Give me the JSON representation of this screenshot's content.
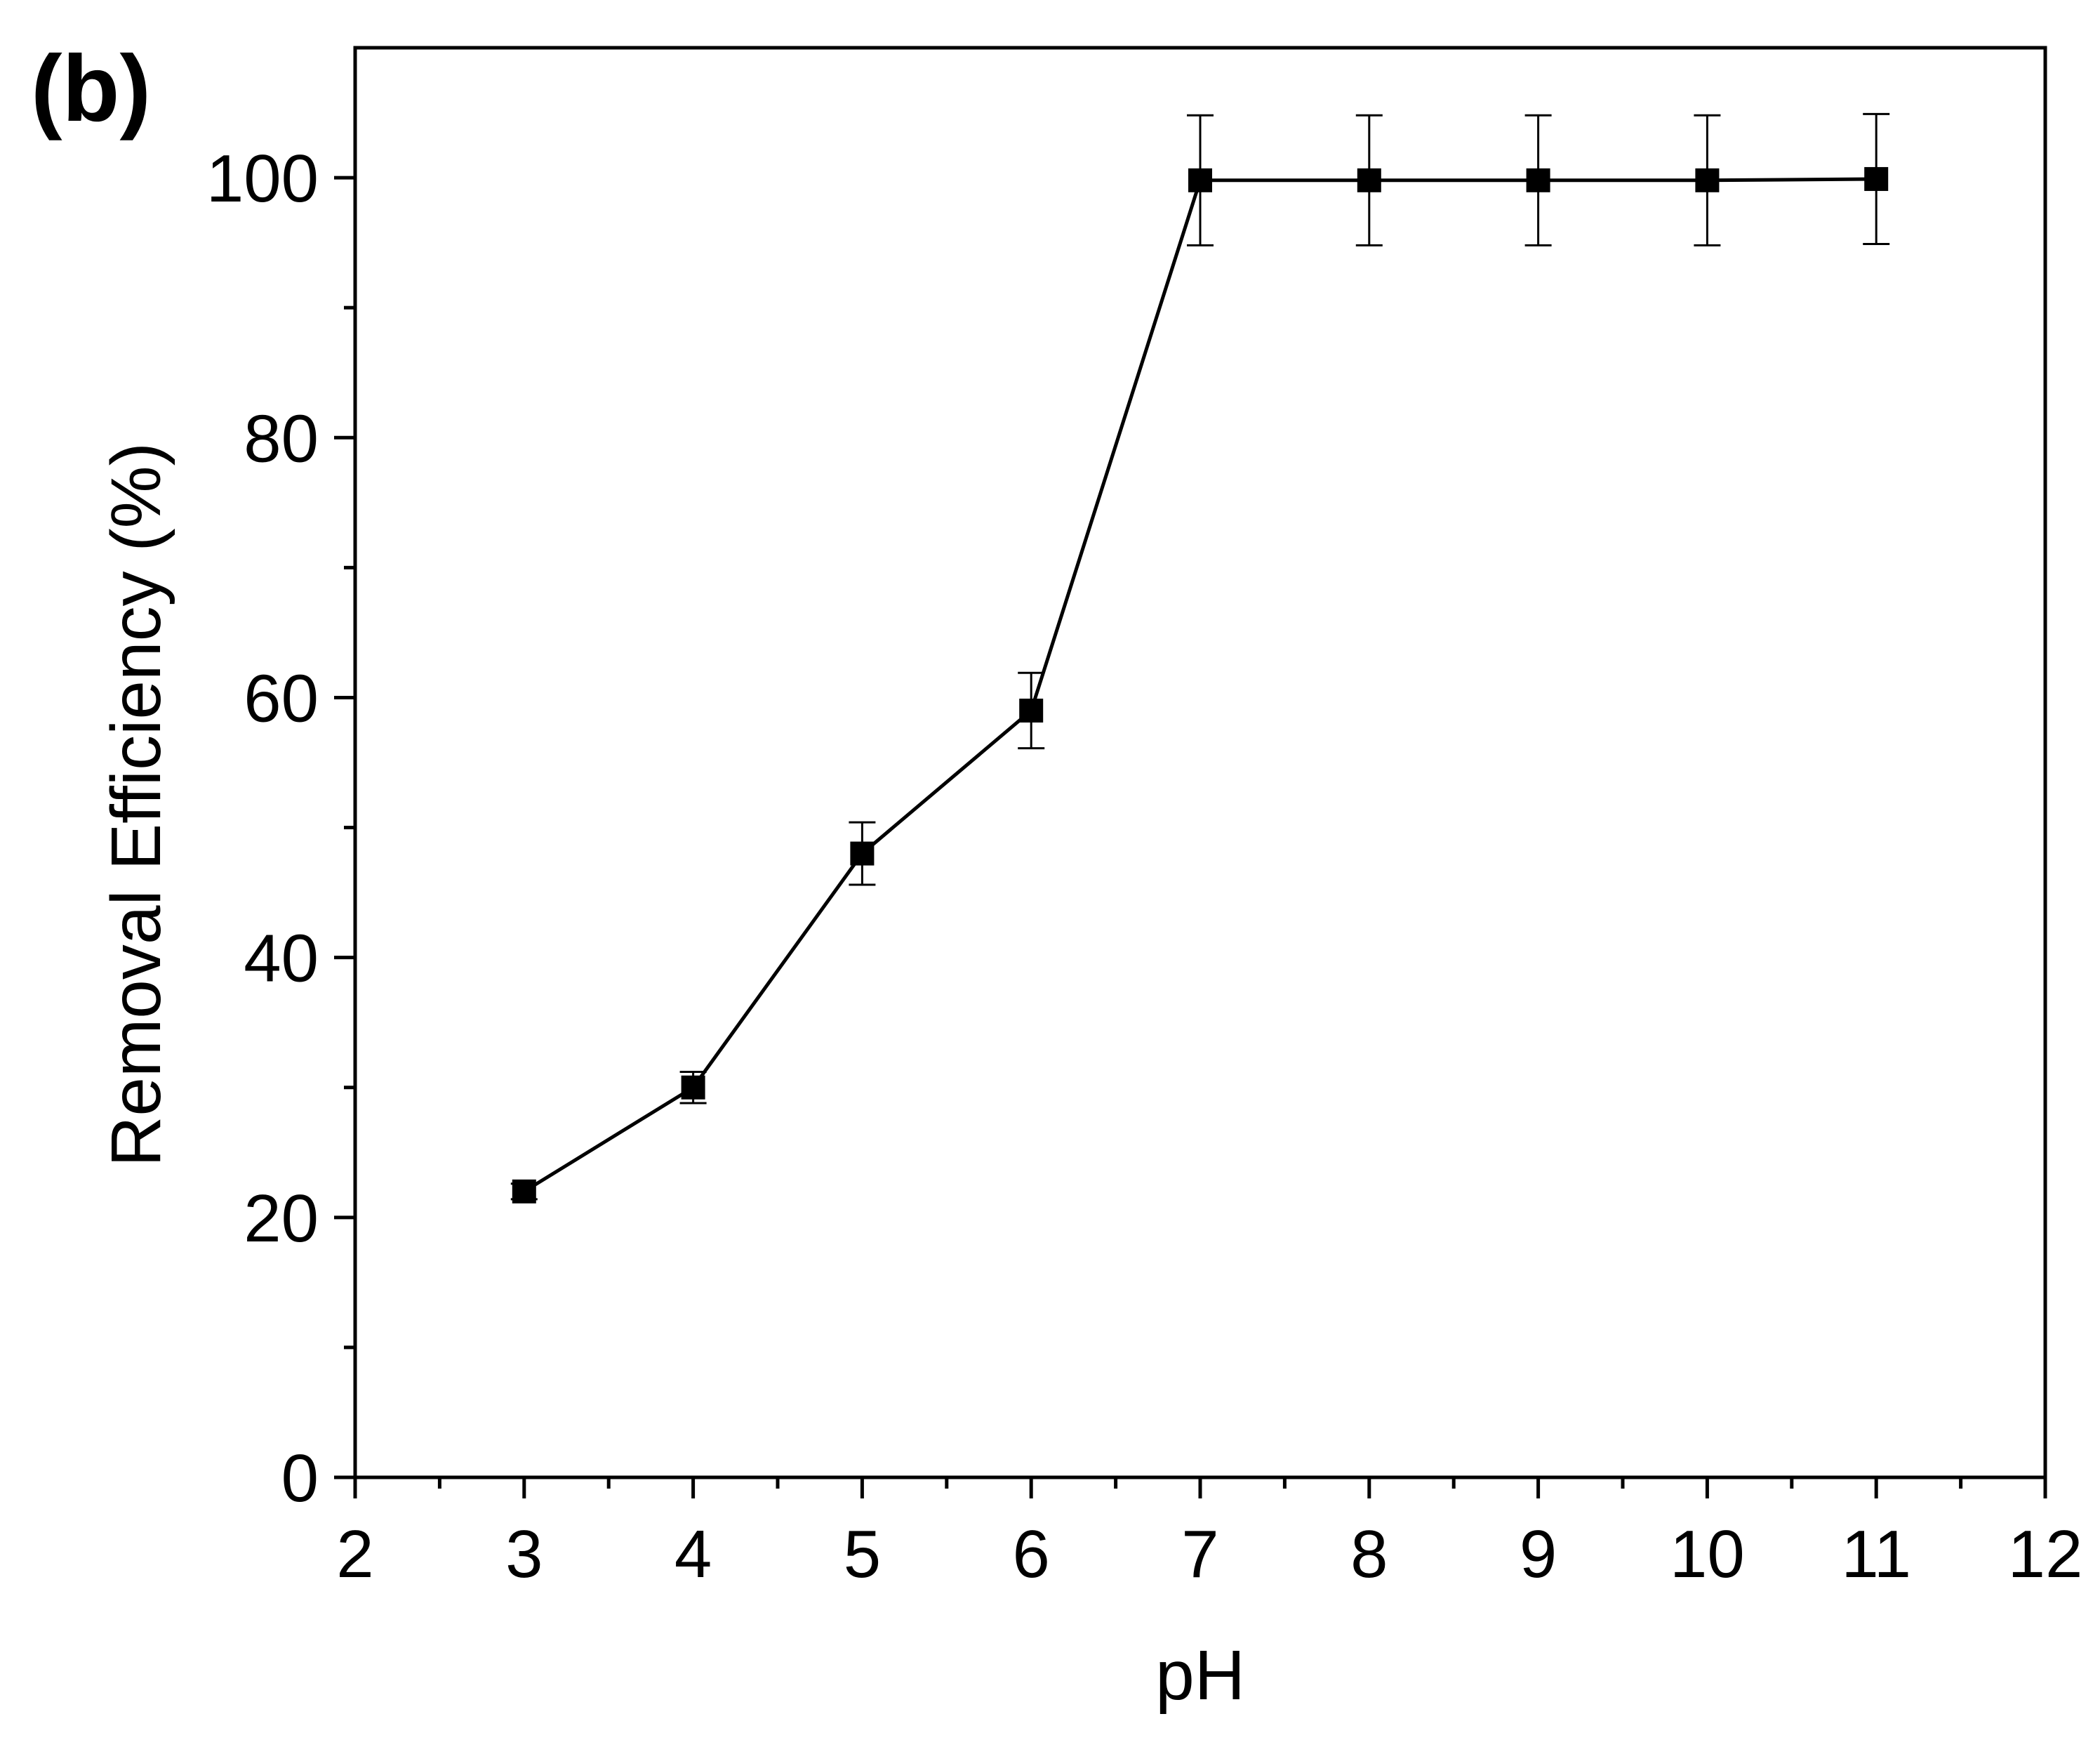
{
  "panel_label": "(b)",
  "chart_data": {
    "type": "scatter",
    "title": "",
    "xlabel": "pH",
    "ylabel": "Removal Efficiency (%)",
    "xlim": [
      2,
      12
    ],
    "ylim": [
      0,
      110
    ],
    "x_ticks": [
      2,
      3,
      4,
      5,
      6,
      7,
      8,
      9,
      10,
      11,
      12
    ],
    "x_tick_labels": [
      "2",
      "3",
      "4",
      "5",
      "6",
      "7",
      "8",
      "9",
      "10",
      "11",
      "12"
    ],
    "x_minor_step": 0.5,
    "y_ticks": [
      0,
      20,
      40,
      60,
      80,
      100
    ],
    "y_tick_labels": [
      "0",
      "20",
      "40",
      "60",
      "80",
      "100"
    ],
    "y_minor_step": 10,
    "grid": false,
    "connected": true,
    "marker": "square",
    "color": "#000000",
    "series": [
      {
        "x": [
          3,
          4,
          5,
          6,
          7,
          8,
          9,
          10,
          11
        ],
        "y": [
          22,
          30,
          48,
          59,
          99.8,
          99.8,
          99.8,
          99.8,
          99.9
        ],
        "error": [
          0.6,
          1.2,
          2.4,
          2.9,
          5,
          5,
          5,
          5,
          5
        ]
      }
    ]
  }
}
